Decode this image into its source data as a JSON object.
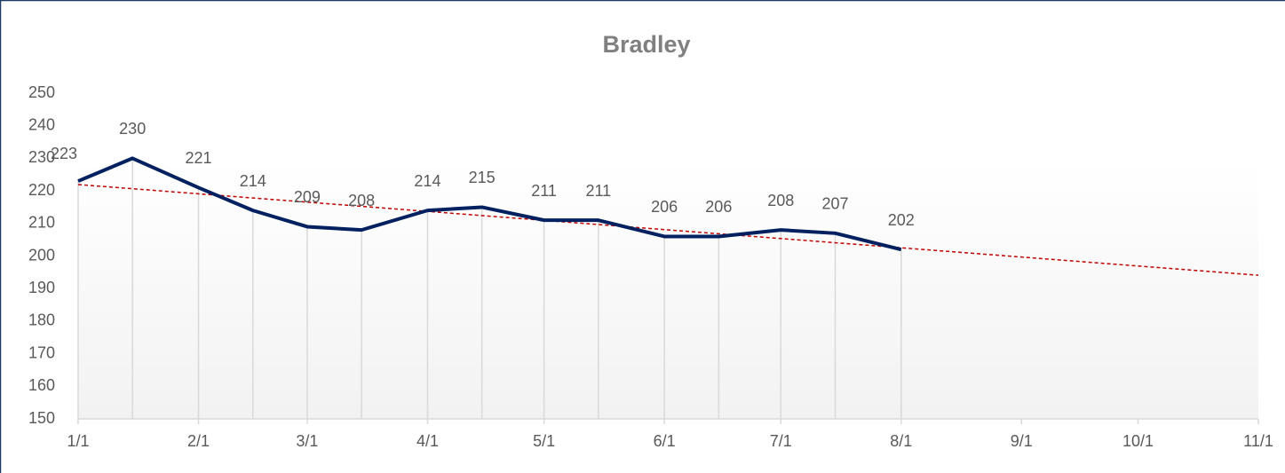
{
  "chart_data": {
    "type": "line",
    "title": "Bradley",
    "x": [
      "1/1",
      "1/15",
      "2/1",
      "2/15",
      "3/1",
      "3/15",
      "4/1",
      "4/15",
      "5/1",
      "5/15",
      "6/1",
      "6/15",
      "7/1",
      "7/15",
      "8/1"
    ],
    "values": [
      223,
      230,
      221,
      214,
      209,
      208,
      214,
      215,
      211,
      211,
      206,
      206,
      208,
      207,
      202
    ],
    "color": "#002060",
    "xlim": [
      "1/1",
      "11/1"
    ],
    "xticks": [
      "1/1",
      "2/1",
      "3/1",
      "4/1",
      "5/1",
      "6/1",
      "7/1",
      "8/1",
      "9/1",
      "10/1",
      "11/1"
    ],
    "ylim": [
      150,
      250
    ],
    "yticks": [
      150,
      160,
      170,
      180,
      190,
      200,
      210,
      220,
      230,
      240,
      250
    ],
    "drop_lines": true,
    "trendline": {
      "type": "linear",
      "color": "#c00000"
    }
  }
}
